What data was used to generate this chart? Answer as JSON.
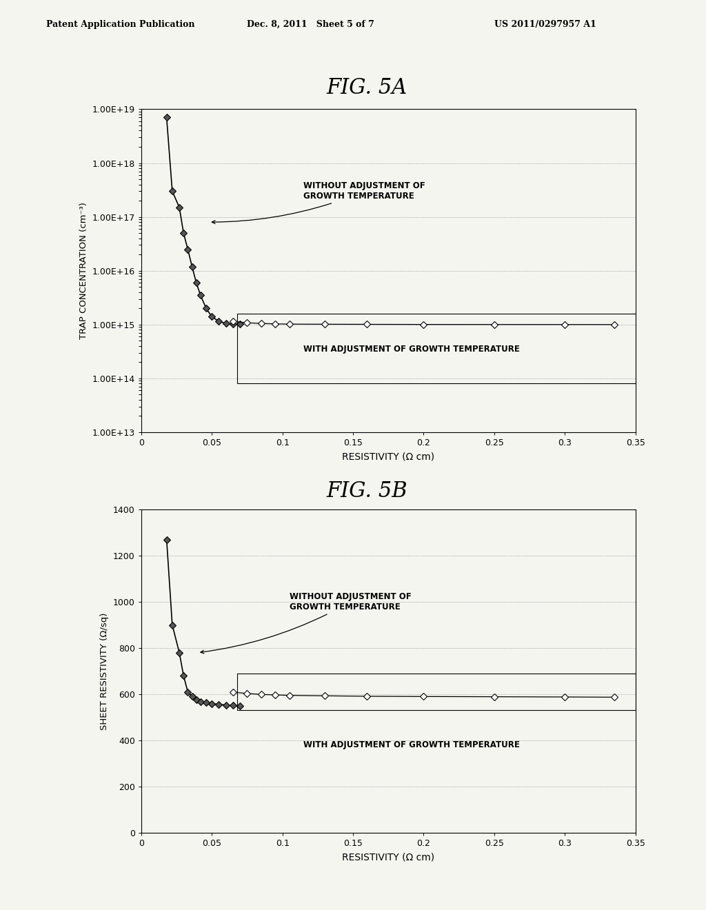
{
  "header_left": "Patent Application Publication",
  "header_mid": "Dec. 8, 2011   Sheet 5 of 7",
  "header_right": "US 2011/0297957 A1",
  "fig5a_title": "FIG. 5A",
  "fig5b_title": "FIG. 5B",
  "fig5a_ylabel": "TRAP CONCENTRATION (cm-3)",
  "fig5b_ylabel": "SHEET RESISTIVITY (Ω/sq)",
  "xlabel": "RESISTIVITY (Ω cm)",
  "fig5a_ytick_labels": [
    "1.00E+13",
    "1.00E+14",
    "1.00E+15",
    "1.00E+16",
    "1.00E+17",
    "1.00E+18",
    "1.00E+19"
  ],
  "fig5a_ytick_vals": [
    10000000000000.0,
    100000000000000.0,
    1000000000000000.0,
    1e+16,
    1e+17,
    1e+18,
    1e+19
  ],
  "fig5b_yticks": [
    0,
    200,
    400,
    600,
    800,
    1000,
    1200,
    1400
  ],
  "xticks": [
    0,
    0.05,
    0.1,
    0.15,
    0.2,
    0.25,
    0.3,
    0.35
  ],
  "xtick_labels": [
    "0",
    "0.05",
    "0.1",
    "0.15",
    "0.2",
    "0.25",
    "0.3",
    "0.35"
  ],
  "s1x": [
    0.018,
    0.022,
    0.027,
    0.03,
    0.033,
    0.036,
    0.039,
    0.042,
    0.046,
    0.05,
    0.055,
    0.06,
    0.065,
    0.07
  ],
  "s1y5a": [
    7e+18,
    3e+17,
    1.5e+17,
    5e+16,
    2.5e+16,
    1.2e+16,
    6000000000000000.0,
    3500000000000000.0,
    2000000000000000.0,
    1400000000000000.0,
    1150000000000000.0,
    1050000000000000.0,
    1020000000000000.0,
    1010000000000000.0
  ],
  "s2x": [
    0.065,
    0.075,
    0.085,
    0.095,
    0.105,
    0.13,
    0.16,
    0.2,
    0.25,
    0.3,
    0.335
  ],
  "s2y5a": [
    1150000000000000.0,
    1080000000000000.0,
    1050000000000000.0,
    1030000000000000.0,
    1020000000000000.0,
    1015000000000000.0,
    1010000000000000.0,
    1005000000000000.0,
    1003000000000000.0,
    1002000000000000.0,
    1000000000000000.0
  ],
  "s1y5b": [
    1270,
    900,
    780,
    680,
    610,
    590,
    575,
    568,
    563,
    559,
    556,
    553,
    551,
    549
  ],
  "s2y5b": [
    609,
    603,
    599,
    597,
    595,
    593,
    591,
    590,
    589,
    588,
    587
  ],
  "bg_color": "#f5f5f0"
}
